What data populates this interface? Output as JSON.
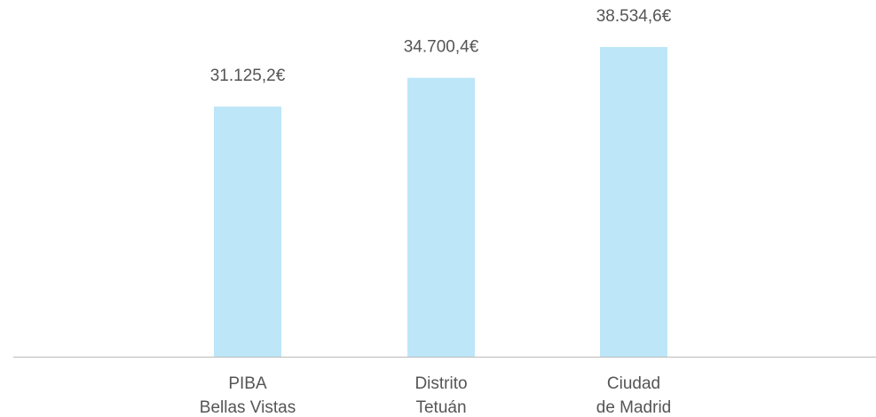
{
  "chart_data": {
    "type": "bar",
    "categories": [
      [
        "PIBA",
        "Bellas Vistas"
      ],
      [
        "Distrito",
        "Tetuán"
      ],
      [
        "Ciudad",
        "de Madrid"
      ]
    ],
    "values": [
      31125.2,
      34700.4,
      38534.6
    ],
    "value_labels": [
      "31.125,2€",
      "34.700,4€",
      "38.534,6€"
    ],
    "color": "#bde6f8"
  }
}
